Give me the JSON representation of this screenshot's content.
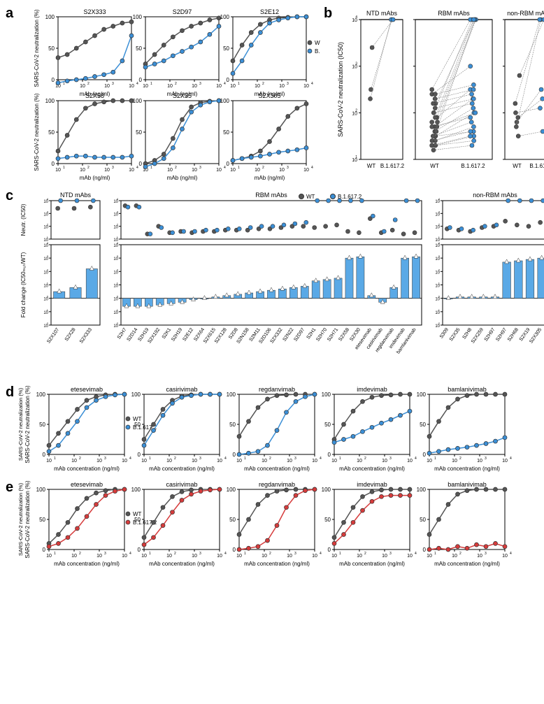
{
  "colors": {
    "wt": "#555555",
    "delta": "#3b8fd6",
    "kappa": "#d63b3b",
    "bar": "#5aa9e6",
    "bar_edge": "#333333",
    "marker_edge": "#333333",
    "bg": "#ffffff",
    "axis": "#000000"
  },
  "legend_a": {
    "wt": "WT",
    "delta": "B.1.617.2"
  },
  "legend_e": {
    "wt": "WT",
    "kappa": "B.1.617.2"
  },
  "panel_a": {
    "ylabel": "SARS-CoV-2 neutralization (%)",
    "xlabel": "mAb (ng/ml)",
    "ylim": [
      0,
      100
    ],
    "ytick_step": 50,
    "xticks": [
      1,
      2,
      3,
      4
    ],
    "xtick_labels": [
      "10¹",
      "10²",
      "10³",
      "10⁴"
    ],
    "charts": [
      {
        "title": "S2X333",
        "wt": [
          35,
          40,
          50,
          60,
          70,
          80,
          85,
          90,
          92
        ],
        "delta": [
          -5,
          -2,
          0,
          2,
          5,
          8,
          12,
          30,
          70
        ]
      },
      {
        "title": "S2D97",
        "wt": [
          25,
          40,
          55,
          68,
          78,
          85,
          90,
          95,
          98
        ],
        "delta": [
          20,
          25,
          30,
          38,
          45,
          52,
          60,
          72,
          85
        ]
      },
      {
        "title": "S2E12",
        "wt": [
          30,
          55,
          75,
          88,
          95,
          98,
          99,
          100,
          100
        ],
        "delta": [
          10,
          30,
          55,
          75,
          90,
          95,
          98,
          100,
          100
        ]
      },
      {
        "title": "S2X58",
        "wt": [
          20,
          45,
          70,
          88,
          95,
          98,
          100,
          100,
          100
        ],
        "delta": [
          8,
          10,
          12,
          12,
          10,
          10,
          10,
          10,
          12
        ]
      },
      {
        "title": "S2X35",
        "wt": [
          0,
          5,
          15,
          40,
          70,
          90,
          97,
          99,
          100
        ],
        "delta": [
          -5,
          0,
          8,
          25,
          55,
          82,
          93,
          98,
          100
        ]
      },
      {
        "title": "S2X305",
        "wt": [
          5,
          8,
          12,
          20,
          35,
          55,
          75,
          88,
          95
        ],
        "delta": [
          5,
          8,
          10,
          12,
          15,
          18,
          20,
          22,
          25
        ]
      }
    ]
  },
  "panel_b": {
    "ylabel": "SARS-CoV-2 neutralization (IC50)",
    "xcats": [
      "WT",
      "B.1.617.2"
    ],
    "ylim_log": [
      1,
      4
    ],
    "ytick_labels": [
      "10¹",
      "10²",
      "10³",
      "10⁴"
    ],
    "groups": [
      {
        "title": "NTD mAbs",
        "pairs": [
          [
            2.5,
            4.0
          ],
          [
            2.3,
            4.0
          ],
          [
            3.4,
            4.0
          ]
        ]
      },
      {
        "title": "RBM mAbs",
        "pairs": [
          [
            1.2,
            1.3
          ],
          [
            1.3,
            1.5
          ],
          [
            1.4,
            1.7
          ],
          [
            1.5,
            2.0
          ],
          [
            1.6,
            2.1
          ],
          [
            1.7,
            2.3
          ],
          [
            1.8,
            2.5
          ],
          [
            2.0,
            4.0
          ],
          [
            1.9,
            4.0
          ],
          [
            2.2,
            4.0
          ],
          [
            2.4,
            3.0
          ],
          [
            1.3,
            1.4
          ],
          [
            1.5,
            1.6
          ],
          [
            1.7,
            1.9
          ],
          [
            1.8,
            4.0
          ],
          [
            2.0,
            2.2
          ],
          [
            1.4,
            1.6
          ],
          [
            1.6,
            4.0
          ],
          [
            2.1,
            2.3
          ],
          [
            2.3,
            2.5
          ],
          [
            2.5,
            4.0
          ],
          [
            1.3,
            1.5
          ],
          [
            1.5,
            1.8
          ],
          [
            1.7,
            2.0
          ],
          [
            1.9,
            4.0
          ],
          [
            2.2,
            2.4
          ],
          [
            2.4,
            2.6
          ]
        ]
      },
      {
        "title": "non-RBM mAbs",
        "pairs": [
          [
            2.0,
            2.1
          ],
          [
            1.8,
            2.5
          ],
          [
            1.7,
            4.0
          ],
          [
            2.8,
            4.0
          ],
          [
            1.5,
            1.6
          ],
          [
            1.9,
            2.3
          ],
          [
            2.2,
            4.0
          ]
        ]
      }
    ]
  },
  "panel_c": {
    "ylabel_top": "Neutr. (IC50)",
    "ylabel_bot": "Fold change (IC50ₘᵤₜ/WT)",
    "legend": {
      "wt": "WT",
      "delta": "B.1.617.2"
    },
    "ylim_top_log": [
      1,
      4
    ],
    "ylim_bot_log": [
      -2,
      4
    ],
    "ytick_top": [
      "10¹",
      "10²",
      "10³",
      "10⁴"
    ],
    "ytick_bot": [
      "10⁻²",
      "10⁻¹",
      "10⁰",
      "10¹",
      "10²",
      "10³",
      "10⁴"
    ],
    "groups": [
      {
        "title": "NTD mAbs",
        "labels": [
          "S2X107",
          "S2X28",
          "S2X333"
        ],
        "wt": [
          3.4,
          3.4,
          3.5
        ],
        "delta": [
          4.0,
          4.0,
          4.0
        ],
        "fold": [
          0.5,
          0.8,
          2.2
        ]
      },
      {
        "title": "RBM mAbs",
        "labels": [
          "S2H7",
          "S2D14",
          "S2H19",
          "S2X192",
          "S2K1",
          "S2H19",
          "S2E12",
          "S2X64",
          "S2X615",
          "S2X128",
          "S2D8",
          "S2N158",
          "S2M11",
          "S2D106",
          "S2X332",
          "S2N22",
          "S2D97",
          "S2H1",
          "S2H70",
          "S2H71",
          "S2X58",
          "S2X30",
          "etesevimab",
          "casirivimab",
          "regdanvimab",
          "imdevimab",
          "bamlanivimab"
        ],
        "wt": [
          3.6,
          3.6,
          1.4,
          2.0,
          1.5,
          1.6,
          1.5,
          1.6,
          1.6,
          1.7,
          1.7,
          1.7,
          1.8,
          1.8,
          1.9,
          2.0,
          2.0,
          1.9,
          2.0,
          2.1,
          1.6,
          1.5,
          2.6,
          1.5,
          1.7,
          1.4,
          1.5
        ],
        "delta": [
          3.5,
          3.5,
          1.4,
          1.9,
          1.5,
          1.6,
          1.6,
          1.7,
          1.7,
          1.8,
          1.8,
          1.9,
          2.0,
          2.0,
          2.1,
          2.2,
          2.3,
          4.0,
          4.0,
          4.0,
          4.0,
          4.0,
          2.8,
          1.6,
          2.5,
          4.0,
          4.0
        ],
        "fold": [
          -0.6,
          -0.6,
          -0.6,
          -0.5,
          -0.4,
          -0.3,
          -0.1,
          0.0,
          0.1,
          0.2,
          0.3,
          0.4,
          0.5,
          0.6,
          0.7,
          0.8,
          0.9,
          1.3,
          1.4,
          1.5,
          3.0,
          3.1,
          0.2,
          -0.3,
          0.8,
          3.0,
          3.1
        ]
      },
      {
        "title": "non-RBM mAbs",
        "labels": [
          "S309",
          "S2X35",
          "S2H8",
          "S2X259",
          "S2H97",
          "S2H97",
          "S2H68",
          "S2X19",
          "S2X305"
        ],
        "wt": [
          1.8,
          1.7,
          1.6,
          1.9,
          2.0,
          2.4,
          2.1,
          2.0,
          2.3
        ],
        "delta": [
          1.9,
          1.8,
          1.7,
          2.0,
          2.1,
          4.0,
          4.0,
          4.0,
          4.0
        ],
        "fold": [
          0.0,
          0.1,
          0.1,
          0.1,
          0.1,
          2.7,
          2.8,
          2.9,
          3.0
        ]
      }
    ]
  },
  "panel_d": {
    "ylabel": "SARS-CoV-2 neutralization (%)",
    "xlabel": "mAb concentration (ng/ml)",
    "legend": {
      "wt": "WT",
      "delta": "B.1.617.2"
    },
    "charts": [
      {
        "title": "etesevimab",
        "wt": [
          15,
          35,
          55,
          75,
          90,
          96,
          99,
          100,
          100
        ],
        "delta": [
          5,
          15,
          35,
          55,
          78,
          90,
          96,
          99,
          100
        ]
      },
      {
        "title": "casirivimab",
        "wt": [
          25,
          50,
          75,
          90,
          97,
          99,
          100,
          100,
          100
        ],
        "delta": [
          15,
          40,
          65,
          85,
          95,
          98,
          100,
          100,
          100
        ]
      },
      {
        "title": "regdanvimab",
        "wt": [
          30,
          55,
          78,
          92,
          98,
          99,
          100,
          100,
          100
        ],
        "delta": [
          0,
          2,
          5,
          15,
          40,
          70,
          88,
          96,
          100
        ]
      },
      {
        "title": "imdevimab",
        "wt": [
          25,
          50,
          72,
          88,
          95,
          98,
          99,
          100,
          100
        ],
        "delta": [
          20,
          25,
          30,
          38,
          45,
          52,
          58,
          65,
          72
        ]
      },
      {
        "title": "bamlanivimab",
        "wt": [
          30,
          55,
          78,
          92,
          98,
          100,
          100,
          100,
          100
        ],
        "delta": [
          2,
          5,
          8,
          10,
          12,
          15,
          18,
          22,
          28
        ]
      }
    ]
  },
  "panel_e": {
    "ylabel": "SARS-CoV-2 neutralization (%)",
    "xlabel": "mAb concentration (ng/ml)",
    "legend": {
      "wt": "WT",
      "kappa": "B.1.617.2"
    },
    "charts": [
      {
        "title": "etesevimab",
        "wt": [
          10,
          25,
          45,
          68,
          85,
          94,
          98,
          100,
          100
        ],
        "kappa": [
          5,
          10,
          20,
          35,
          55,
          75,
          90,
          97,
          100
        ]
      },
      {
        "title": "casirivimab",
        "wt": [
          20,
          45,
          70,
          88,
          96,
          99,
          100,
          100,
          100
        ],
        "kappa": [
          8,
          20,
          40,
          62,
          82,
          92,
          97,
          99,
          100
        ]
      },
      {
        "title": "regdanvimab",
        "wt": [
          25,
          50,
          75,
          90,
          97,
          99,
          100,
          100,
          100
        ],
        "kappa": [
          0,
          2,
          5,
          15,
          40,
          70,
          90,
          98,
          100
        ]
      },
      {
        "title": "imdevimab",
        "wt": [
          20,
          45,
          70,
          88,
          96,
          99,
          100,
          100,
          100
        ],
        "kappa": [
          10,
          25,
          45,
          65,
          80,
          88,
          90,
          90,
          90
        ]
      },
      {
        "title": "bamlanivimab",
        "wt": [
          25,
          50,
          75,
          92,
          98,
          100,
          100,
          100,
          100
        ],
        "kappa": [
          0,
          2,
          0,
          5,
          2,
          8,
          5,
          10,
          5
        ]
      }
    ]
  }
}
